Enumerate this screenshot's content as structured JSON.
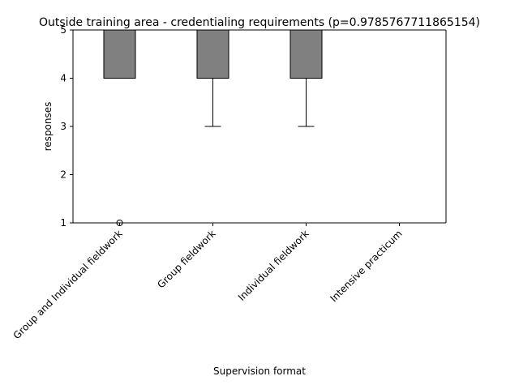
{
  "chart_data": {
    "type": "box",
    "title": "Outside training area - credentialing requirements (p=0.9785767711865154)",
    "xlabel": "Supervision format",
    "ylabel": "responses",
    "ylim": [
      1,
      5
    ],
    "yticks": [
      1,
      2,
      3,
      4,
      5
    ],
    "categories": [
      "Group and Individual fieldwork",
      "Group fieldwork",
      "Individual fieldwork",
      "Intensive practicum"
    ],
    "boxes": [
      {
        "category": "Group and Individual fieldwork",
        "q1": 4,
        "median": 4,
        "q3": 5,
        "whisker_low": 4,
        "whisker_high": 5,
        "outliers": [
          1
        ]
      },
      {
        "category": "Group fieldwork",
        "q1": 4,
        "median": 4,
        "q3": 5,
        "whisker_low": 3,
        "whisker_high": 5,
        "outliers": []
      },
      {
        "category": "Individual fieldwork",
        "q1": 4,
        "median": 4,
        "q3": 5,
        "whisker_low": 3,
        "whisker_high": 5,
        "outliers": []
      }
    ],
    "grid": false,
    "legend": "none",
    "colors": {
      "box_fill": "#808080",
      "box_edge": "#000000",
      "median": "#000000",
      "whisker": "#000000",
      "axis": "#000000"
    }
  }
}
